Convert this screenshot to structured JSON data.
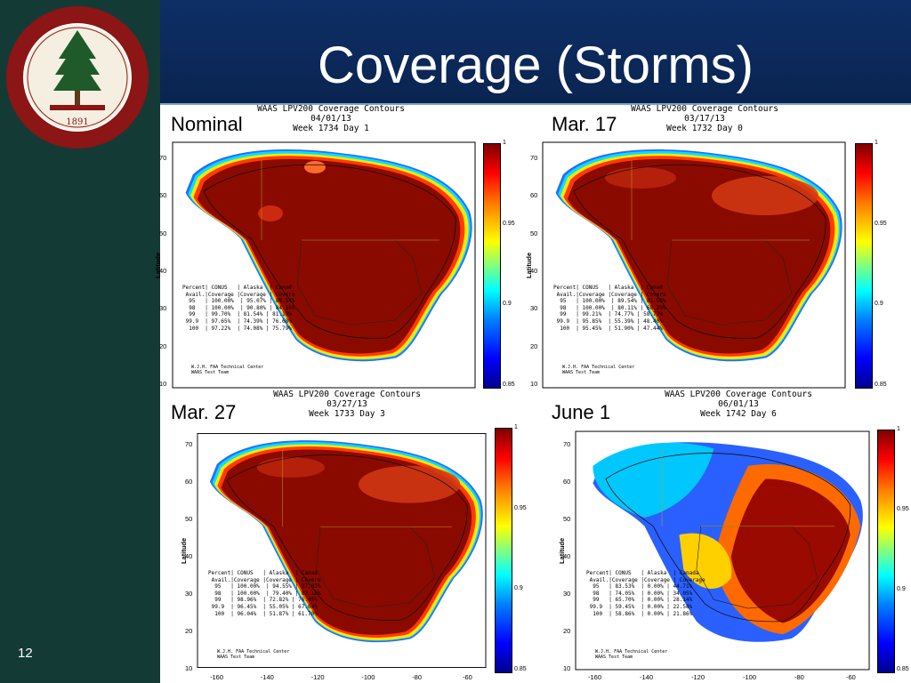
{
  "slide": {
    "title": "Coverage (Storms)",
    "number": "12"
  },
  "seal": {
    "text": "LELAND STANFORD JUNIOR UNIVERSITY • DIE LUFT DER FREIHEIT WEHT",
    "year": "1891"
  },
  "colors": {
    "sidebar": "#143a36",
    "header": "#0d2f67",
    "seal_red": "#8c1515"
  },
  "axis": {
    "ylabel": "Latitude",
    "yticks": [
      "70",
      "60",
      "50",
      "40",
      "30",
      "20",
      "10"
    ],
    "xticks": [
      "-160",
      "-140",
      "-120",
      "-100",
      "-80",
      "-60"
    ],
    "colorbar_ticks": [
      "1",
      "0.95",
      "0.9",
      "0.85"
    ]
  },
  "panels": [
    {
      "label": "Nominal",
      "head1": "WAAS LPV200 Coverage Contours",
      "head2": "04/01/13",
      "head3": "Week 1734 Day 1",
      "stats": "Percent| CONUS   | Alaska  | Canad\n Avail.|Coverage |Coverage | Covera\n  95   | 100.00%  | 95.07% | 88.54%\n  98   | 100.00%  | 90.80% | 84.16%\n  99   | 99.70%  | 81.54% | 81.19%\n 99.9  | 97.65%  | 74.39% | 76.68%\n  100  | 97.22%  | 74.08% | 75.79%",
      "credit": "W.J.H. FAA Technical Center\nWAAS Test Team",
      "storm": 0
    },
    {
      "label": "Mar. 17",
      "head1": "WAAS LPV200 Coverage Contours",
      "head2": "03/17/13",
      "head3": "Week 1732 Day 0",
      "stats": "Percent| CONUS   | Alaska  | Canad\n Avail.|Coverage |Coverage | Covera\n  95   | 100.00%  | 89.54% | 81.50%\n  98   | 100.00%  | 80.11% | 68.25%\n  99   | 99.21%  | 74.77% | 58.72%\n 99.9  | 95.85%  | 55.39% | 48.40%\n  100  | 95.45%  | 51.90% | 47.44%",
      "credit": "W.J.H. FAA Technical Center\nWAAS Test Team",
      "storm": 1
    },
    {
      "label": "Mar. 27",
      "head1": "WAAS LPV200 Coverage Contours",
      "head2": "03/27/13",
      "head3": "Week 1733 Day 3",
      "stats": "Percent| CONUS   | Alaska  | Canad\n Avail.|Coverage |Coverage | Covera\n  95   | 100.00%  | 94.55% | 87.02%\n  98   | 100.00%  | 79.40% | 82.16%\n  99   | 98.96%  | 72.82% | 76.45%\n 99.9  | 96.45%  | 55.05% | 67.64%\n  100  | 96.04%  | 51.87% | 61.70%",
      "credit": "W.J.H. FAA Technical Center\nWAAS Test Team",
      "storm": 1
    },
    {
      "label": "June 1",
      "head1": "WAAS LPV200 Coverage Contours",
      "head2": "06/01/13",
      "head3": "Week 1742 Day 6",
      "stats": "Percent| CONUS   | Alaska  | Canada\n Avail.|Coverage |Coverage | Coverage\n  95   | 83.53%  | 0.00% | 44.71%\n  98   | 74.05%  | 0.00% | 34.05%\n  99   | 65.70%  | 0.00% | 28.14%\n 99.9  | 59.45%  | 0.00% | 22.58%\n  100  | 58.86%  | 0.00% | 21.86%",
      "credit": "W.J.H. FAA Technical Center\nWAAS Test Team",
      "storm": 2
    }
  ]
}
